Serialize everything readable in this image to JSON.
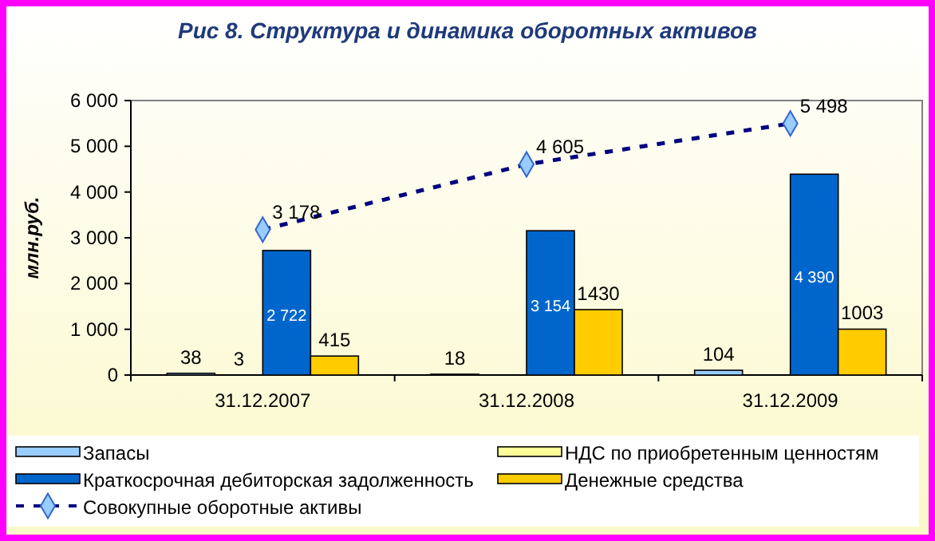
{
  "chart_data": {
    "type": "bar",
    "title": "Рис 8. Структура и динамика оборотных активов",
    "ylabel": "млн.руб.",
    "categories": [
      "31.12.2007",
      "31.12.2008",
      "31.12.2009"
    ],
    "series": [
      {
        "name": "Запасы",
        "color": "#99ccff",
        "values": [
          38,
          18,
          104
        ],
        "value_labels": [
          "38",
          "18",
          "104"
        ]
      },
      {
        "name": "НДС по приобретенным ценностям",
        "color": "#ffff99",
        "values": [
          3,
          null,
          null
        ],
        "value_labels": [
          "3",
          null,
          null
        ]
      },
      {
        "name": "Краткосрочная дебиторская задолженность",
        "color": "#0066cc",
        "values": [
          2722,
          3154,
          4390
        ],
        "value_labels": [
          "2 722",
          "3 154",
          "4 390"
        ]
      },
      {
        "name": "Денежные средства",
        "color": "#ffcc00",
        "values": [
          415,
          1430,
          1003
        ],
        "value_labels": [
          "415",
          "1430",
          "1003"
        ]
      },
      {
        "name": "Совокупные оборотные активы",
        "type": "line",
        "color": "#000080",
        "marker": "diamond",
        "line_style": "dashed",
        "values": [
          3178,
          4605,
          5498
        ],
        "value_labels": [
          "3 178",
          "4 605",
          "5 498"
        ]
      }
    ],
    "ylim": [
      0,
      6000
    ],
    "yticks": [
      0,
      {
        "value": 1000,
        "label": "1 000"
      },
      {
        "value": 2000,
        "label": "2 000"
      },
      {
        "value": 3000,
        "label": "3 000"
      },
      {
        "value": 4000,
        "label": "4 000"
      },
      {
        "value": 5000,
        "label": "5 000"
      },
      {
        "value": 6000,
        "label": "6 000"
      }
    ],
    "grid": false,
    "legend": "bottom"
  }
}
